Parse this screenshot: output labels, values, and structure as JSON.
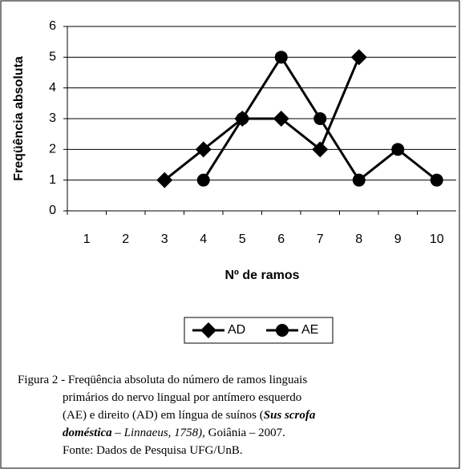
{
  "chart_data": {
    "type": "line",
    "ylabel": "Freqüência absoluta",
    "xlabel": "Nº de ramos",
    "categories": [
      "1",
      "2",
      "3",
      "4",
      "5",
      "6",
      "7",
      "8",
      "9",
      "10"
    ],
    "series": [
      {
        "name": "AD",
        "color": "#000000",
        "marker": "diamond",
        "values": [
          null,
          null,
          1,
          2,
          3,
          3,
          2,
          5,
          null,
          null
        ]
      },
      {
        "name": "AE",
        "color": "#000000",
        "marker": "circle",
        "values": [
          null,
          null,
          null,
          1,
          3,
          5,
          3,
          1,
          2,
          1
        ]
      }
    ],
    "ylim": [
      0,
      6
    ],
    "yticks": [
      0,
      1,
      2,
      3,
      4,
      5,
      6
    ],
    "grid": true,
    "legend": "bottom"
  },
  "caption": [
    [
      {
        "text": "Figura 2 - Freqüência absoluta do número de ramos linguais"
      }
    ],
    [
      {
        "text": "primários do nervo lingual por antímero esquerdo"
      }
    ],
    [
      {
        "text": "(AE) e direito (AD) em língua de suínos ("
      },
      {
        "text": "Sus scrofa",
        "bold": true,
        "italic": true
      }
    ],
    [
      {
        "text": "doméstica",
        "bold": true,
        "italic": true
      },
      {
        "text": " – Linnaeus, 1758),",
        "italic": true
      },
      {
        "text": " Goiânia – 2007."
      }
    ],
    [
      {
        "text": "Fonte: Dados de Pesquisa UFG/UnB."
      }
    ]
  ]
}
